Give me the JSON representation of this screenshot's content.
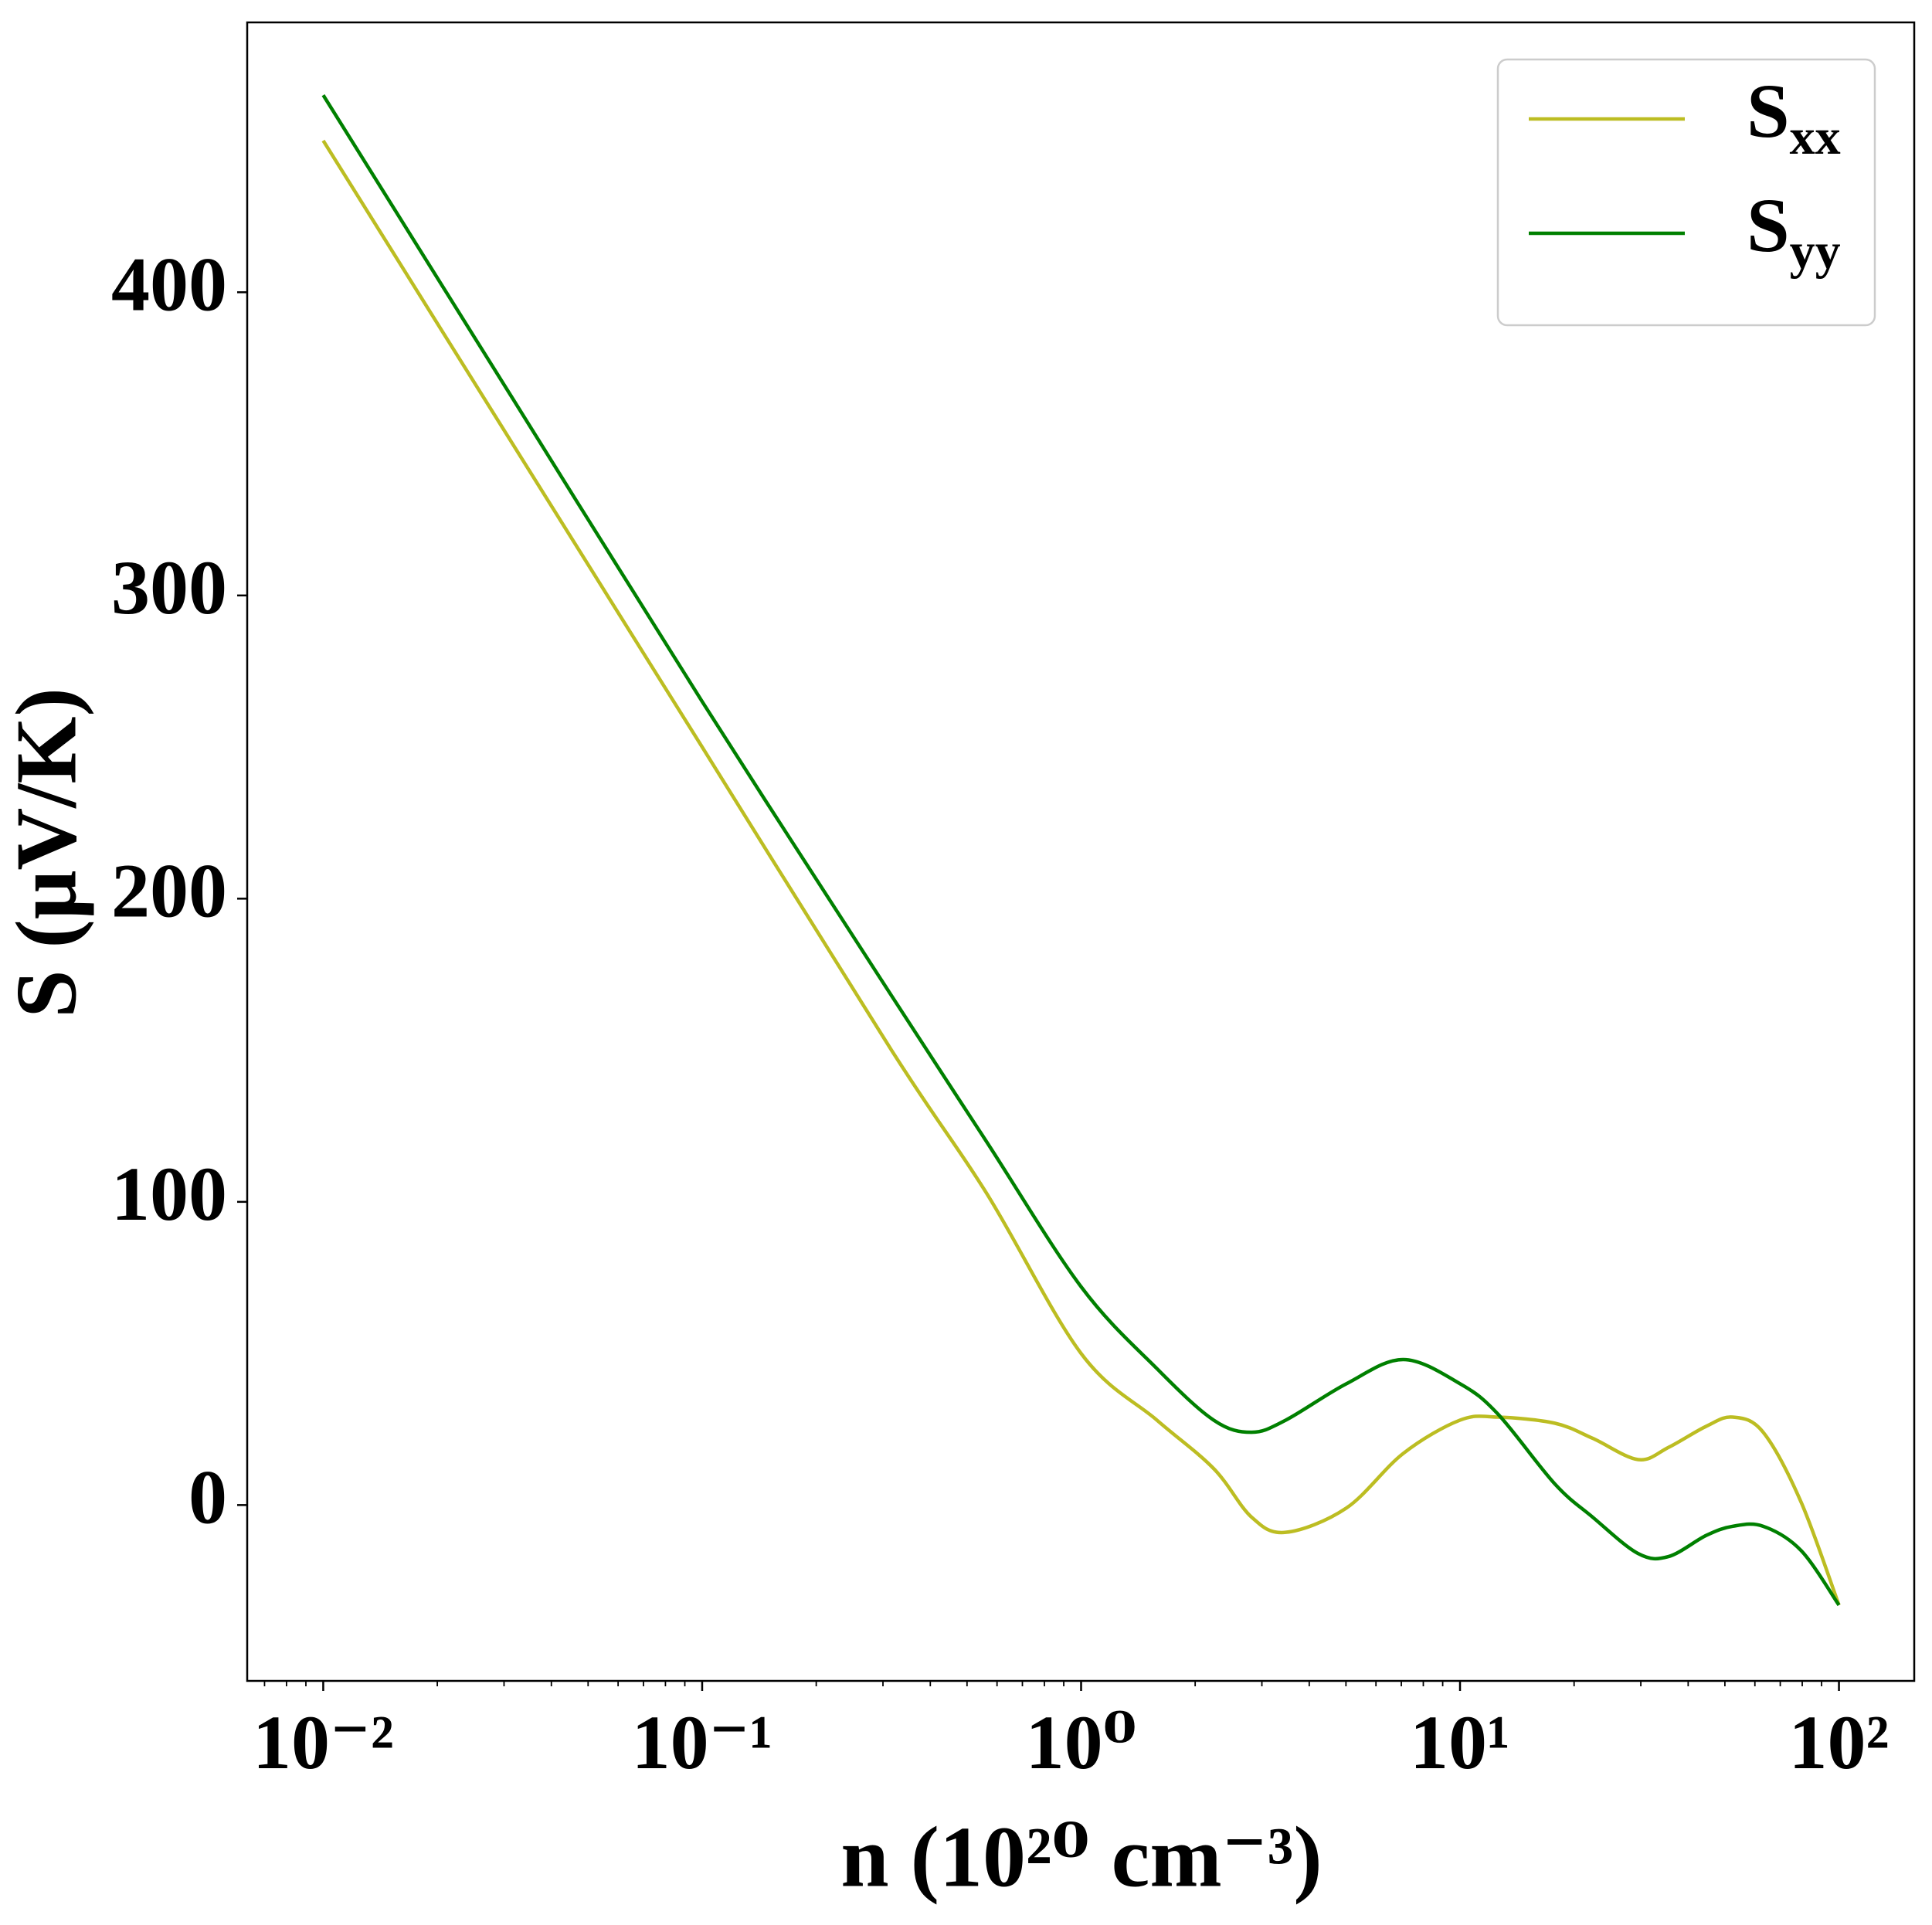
{
  "chart_data": {
    "type": "line",
    "xlabel": "n (10²⁰ cm⁻³)",
    "ylabel": "S (μV/K)",
    "x": [
      0.01,
      0.0316,
      0.1,
      0.316,
      0.562,
      1,
      1.585,
      2.239,
      2.818,
      3.467,
      5.012,
      7.079,
      10,
      12.59,
      17.78,
      22.39,
      29.51,
      35.48,
      44.67,
      52.48,
      63.1,
      79.43,
      100
    ],
    "series": [
      {
        "name": "Sxx",
        "color": "#bcbd22",
        "values": [
          450,
          350,
          250,
          150,
          103,
          50,
          28,
          12,
          -4,
          -9,
          -1,
          17,
          28,
          29,
          27,
          22,
          15,
          19,
          26,
          29,
          24,
          1,
          -33
        ]
      },
      {
        "name": "Syy",
        "color": "#008000",
        "values": [
          465,
          365,
          265,
          168,
          120,
          72,
          45,
          28,
          24,
          28,
          40,
          48,
          40,
          30,
          7,
          -4,
          -16,
          -17,
          -10,
          -7,
          -7,
          -15,
          -33
        ]
      }
    ],
    "xscale": "log",
    "xlim": [
      0.0063,
      158
    ],
    "ylim": [
      -58,
      489
    ],
    "xticks": [
      {
        "value": 0.01,
        "label": "10⁻²"
      },
      {
        "value": 0.1,
        "label": "10⁻¹"
      },
      {
        "value": 1,
        "label": "10⁰"
      },
      {
        "value": 10,
        "label": "10¹"
      },
      {
        "value": 100,
        "label": "10²"
      }
    ],
    "xminorticks": [
      0.007,
      0.008,
      0.009,
      0.02,
      0.03,
      0.04,
      0.05,
      0.06,
      0.07,
      0.08,
      0.09,
      0.2,
      0.3,
      0.4,
      0.5,
      0.6,
      0.7,
      0.8,
      0.9,
      2,
      3,
      4,
      5,
      6,
      7,
      8,
      9,
      20,
      30,
      40,
      50,
      60,
      70,
      80,
      90
    ],
    "yticks": [
      0,
      100,
      200,
      300,
      400
    ],
    "grid": false,
    "legend": "upper right"
  }
}
